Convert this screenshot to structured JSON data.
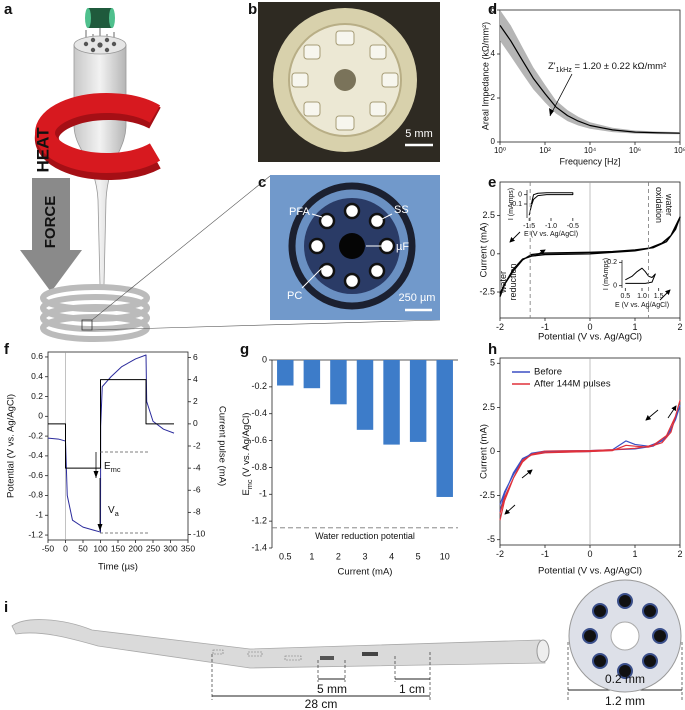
{
  "panels": {
    "a": {
      "label": "a",
      "heat": "HEAT",
      "force": "FORCE"
    },
    "b": {
      "label": "b",
      "scale": "5 mm"
    },
    "c": {
      "label": "c",
      "callouts": [
        "PFA",
        "SS",
        "µF",
        "PC"
      ],
      "scale": "250 µm"
    },
    "i": {
      "label": "i",
      "dims": [
        "5 mm",
        "1 cm",
        "28 cm",
        "0.2 mm",
        "1.2 mm"
      ]
    }
  },
  "chart_data": [
    {
      "panel": "d",
      "type": "line",
      "xscale": "log",
      "xlabel": "Frequency [Hz]",
      "ylabel": "Areal Impedance (kΩ/mm²)",
      "x": [
        1,
        3,
        10,
        30,
        100,
        300,
        1000,
        3000,
        10000,
        100000,
        1000000,
        10000000,
        100000000
      ],
      "series": [
        {
          "color": "#000000",
          "values": [
            5.3,
            4.6,
            3.7,
            2.9,
            2.2,
            1.6,
            1.2,
            0.95,
            0.75,
            0.55,
            0.45,
            0.42,
            0.4
          ]
        }
      ],
      "band": {
        "color": "#b5b5b5",
        "lower": [
          4.6,
          3.9,
          3.1,
          2.4,
          1.8,
          1.3,
          0.95,
          0.75,
          0.6,
          0.45,
          0.38,
          0.36,
          0.35
        ],
        "upper": [
          6.0,
          5.3,
          4.3,
          3.4,
          2.6,
          1.9,
          1.45,
          1.15,
          0.9,
          0.65,
          0.52,
          0.48,
          0.45
        ]
      },
      "xlim": [
        1,
        100000000
      ],
      "xticks": [
        {
          "value": 1,
          "label": "10⁰"
        },
        {
          "value": 100,
          "label": "10²"
        },
        {
          "value": 10000,
          "label": "10⁴"
        },
        {
          "value": 1000000,
          "label": "10⁶"
        },
        {
          "value": 100000000,
          "label": "10⁸"
        }
      ],
      "ylim": [
        0,
        6
      ],
      "yticks": [
        0,
        2,
        4,
        6
      ],
      "annotation": [
        {
          "text": "Z'"
        },
        {
          "text": "1kHz",
          "sub": true
        },
        {
          "text": " = 1.20 ± 0.22 kΩ/mm²"
        }
      ]
    },
    {
      "panel": "e",
      "type": "line",
      "xlabel": "Potential (V vs. Ag/AgCl)",
      "ylabel": "Current (mA)",
      "x": [
        -2,
        -1.9,
        -1.7,
        -1.5,
        -1.3,
        -1,
        0,
        0.5,
        1,
        1.3,
        1.6,
        1.8,
        2,
        1.9,
        1.7,
        1.4,
        1,
        0.5,
        0,
        -1,
        -1.3,
        -1.5,
        -1.7,
        -1.9,
        -2
      ],
      "series": [
        {
          "color": "#000000",
          "values": [
            -2.8,
            -2.0,
            -1.0,
            -0.35,
            -0.15,
            -0.05,
            0,
            0.1,
            0.2,
            0.35,
            0.7,
            1.2,
            2.4,
            1.6,
            0.8,
            0.4,
            0.25,
            0.15,
            0.1,
            0.05,
            -0.05,
            -0.4,
            -1.1,
            -2.0,
            -2.6
          ]
        }
      ],
      "xlim": [
        -2,
        2
      ],
      "xticks": [
        -2,
        -1,
        0,
        1,
        2
      ],
      "ylim": [
        -4.2,
        4.7
      ],
      "yticks": [
        -2.5,
        0,
        2.5
      ],
      "reference_lines": [
        -1.33,
        1.3
      ],
      "annotations": [
        [
          "water",
          "oxidation"
        ],
        [
          "water",
          "reduction"
        ]
      ]
    },
    {
      "type": "line",
      "xlabel": "E (V vs. Ag/AgCl)",
      "ylabel": "I (mAmps)",
      "x": [
        -1.5,
        -1.45,
        -1.4,
        -1.3,
        -1.1,
        -0.8,
        -0.5,
        -0.5,
        -0.8,
        -1.1,
        -1.3,
        -1.4,
        -1.45
      ],
      "series": [
        {
          "color": "#000000",
          "values": [
            -0.22,
            -0.12,
            -0.05,
            -0.01,
            0,
            0,
            0,
            0.02,
            0.02,
            0.02,
            0.015,
            0,
            -0.1
          ]
        }
      ],
      "xlim": [
        -1.55,
        -0.45
      ],
      "xticks": [
        -1.5,
        {
          "value": -1,
          "label": "-1.0"
        },
        -0.5
      ],
      "ylim": [
        -0.25,
        0.05
      ],
      "yticks": [
        -0.1,
        0
      ]
    },
    {
      "type": "line",
      "xlabel": "E (V vs. Ag/AgCl)",
      "ylabel": "I (mAmps)",
      "x": [
        0.5,
        0.7,
        0.85,
        1.0,
        1.1,
        1.2,
        1.3,
        1.4,
        1.3,
        1.1,
        0.9,
        0.7,
        0.5
      ],
      "series": [
        {
          "color": "#000000",
          "values": [
            0.05,
            0.08,
            0.12,
            0.15,
            0.12,
            0.08,
            0.07,
            0.1,
            0.03,
            0.02,
            0.02,
            0.02,
            0.02
          ]
        }
      ],
      "xlim": [
        0.4,
        1.6
      ],
      "xticks": [
        0.5,
        {
          "value": 1,
          "label": "1.0"
        },
        1.5
      ],
      "ylim": [
        -0.02,
        0.22
      ],
      "yticks": [
        0,
        0.2
      ]
    },
    {
      "panel": "f",
      "type": "line",
      "xlabel": "Time (µs)",
      "ylabel": "Potential (V vs. Ag/AgCl)",
      "ylabel_color": "#2b2b9c",
      "y2label": "Current pulse (mA)",
      "series": [
        {
          "color": "#2b2b9c",
          "x": [
            -50,
            -20,
            0,
            5,
            20,
            50,
            80,
            100,
            100.5,
            105,
            130,
            160,
            200,
            230,
            232,
            250,
            280,
            310
          ],
          "values": [
            -0.22,
            -0.23,
            -0.25,
            -0.8,
            -1.05,
            -1.12,
            -1.15,
            -1.17,
            -0.1,
            0.3,
            0.4,
            0.5,
            0.58,
            0.62,
            0.15,
            -0.05,
            -0.13,
            -0.17
          ]
        },
        {
          "color": "#000000",
          "axis": "y2",
          "x": [
            -50,
            0,
            0,
            100,
            100,
            230,
            230,
            310
          ],
          "values": [
            0,
            0,
            -4,
            -4,
            4,
            4,
            0,
            0
          ]
        }
      ],
      "xlim": [
        -50,
        350
      ],
      "xticks": [
        -50,
        0,
        50,
        100,
        150,
        200,
        250,
        300,
        350
      ],
      "ylim": [
        -1.25,
        0.65
      ],
      "yticks": [
        0.6,
        0.4,
        0.2,
        0,
        -0.2,
        -0.4,
        -0.6,
        -0.8,
        -1,
        -1.2
      ],
      "y2lim": [
        -10.5,
        6.5
      ],
      "y2ticks": [
        6,
        4,
        2,
        0,
        -2,
        -4,
        -6,
        -8,
        -10
      ],
      "annotations": [
        [
          {
            "text": "E"
          },
          {
            "text": "mc",
            "sub": true
          }
        ],
        [
          {
            "text": "V"
          },
          {
            "text": "a",
            "sub": true
          }
        ]
      ]
    },
    {
      "panel": "g",
      "type": "bar",
      "xlabel": "Current (mA)",
      "ylabel": [
        {
          "text": "E"
        },
        {
          "text": "mc",
          "sub": true
        },
        {
          "text": " (V vs. Ag/AgCl)"
        }
      ],
      "categories": [
        "0.5",
        "1",
        "2",
        "3",
        "4",
        "5",
        "10"
      ],
      "values": [
        -0.19,
        -0.21,
        -0.33,
        -0.52,
        -0.63,
        -0.61,
        -1.02
      ],
      "color": "#3d7cc9",
      "ylim": [
        -1.4,
        0
      ],
      "yticks": [
        0,
        -0.2,
        -0.4,
        -0.6,
        -0.8,
        -1,
        -1.2,
        -1.4
      ],
      "reference_line": {
        "value": -1.25,
        "label": "Water reduction potential"
      }
    },
    {
      "panel": "h",
      "type": "line",
      "xlabel": "Potential (V vs. Ag/AgCl)",
      "ylabel": "Current (mA)",
      "legend": "upper left",
      "x": [
        -2,
        -1.9,
        -1.7,
        -1.5,
        -1.3,
        -1,
        0,
        0.5,
        0.8,
        1,
        1.3,
        1.6,
        1.8,
        2,
        1.9,
        1.7,
        1.4,
        1,
        0.5,
        0,
        -1,
        -1.3,
        -1.5,
        -1.7,
        -1.9,
        -2
      ],
      "series": [
        {
          "name": "Before",
          "color": "#3b4fc4",
          "values": [
            -3.4,
            -2.4,
            -1.2,
            -0.4,
            -0.15,
            -0.05,
            0,
            0.1,
            0.6,
            0.4,
            0.3,
            0.6,
            1.2,
            2.6,
            1.8,
            0.8,
            0.3,
            0.15,
            0.1,
            0.05,
            0.02,
            -0.1,
            -0.5,
            -1.3,
            -2.3,
            -3.0
          ]
        },
        {
          "name": "After 144M pulses",
          "color": "#e0303a",
          "values": [
            -3.9,
            -2.8,
            -1.5,
            -0.5,
            -0.2,
            -0.07,
            0,
            0.05,
            0.35,
            0.3,
            0.25,
            0.5,
            1.1,
            2.9,
            2.0,
            0.9,
            0.35,
            0.18,
            0.1,
            0.05,
            0.02,
            -0.15,
            -0.6,
            -1.5,
            -2.6,
            -3.5
          ]
        }
      ],
      "xlim": [
        -2,
        2
      ],
      "xticks": [
        -2,
        -1,
        0,
        1,
        2
      ],
      "ylim": [
        -5.3,
        5.3
      ],
      "yticks": [
        5,
        2.5,
        0,
        -2.5,
        -5
      ]
    }
  ]
}
